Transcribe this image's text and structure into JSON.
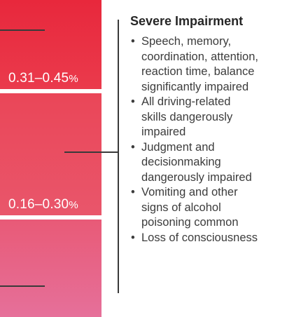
{
  "scale": {
    "ranges": [
      {
        "value": "0.31–0.45",
        "unit": "%"
      },
      {
        "value": "0.16–0.30",
        "unit": "%"
      }
    ],
    "colors": {
      "top": "#e8283c",
      "middle": "#ea4658",
      "bottom": "#e6709a"
    }
  },
  "panel": {
    "heading": "Severe Impairment",
    "bullet_glyph": "•",
    "bullets": [
      {
        "lines": [
          "Speech, memory,",
          "coordination, attention,",
          "reaction time, balance",
          "significantly impaired"
        ]
      },
      {
        "lines": [
          "All driving-related",
          "skills dangerously",
          "impaired"
        ]
      },
      {
        "lines": [
          "Judgment and",
          "decisionmaking",
          "dangerously impaired"
        ]
      },
      {
        "lines": [
          "Vomiting and other",
          "signs of alcohol",
          "poisoning common"
        ]
      },
      {
        "lines": [
          "Loss of consciousness"
        ]
      }
    ]
  }
}
